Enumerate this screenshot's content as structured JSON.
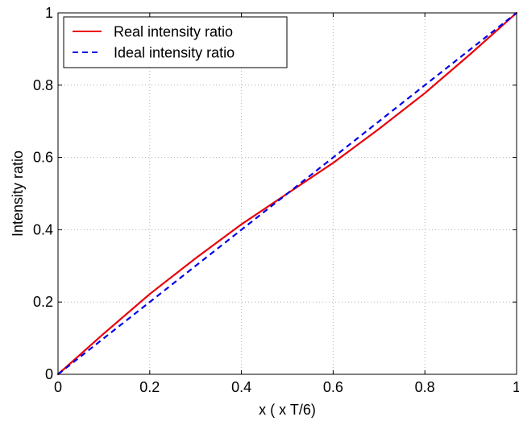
{
  "chart_data": {
    "type": "line",
    "title": "",
    "xlabel": "x ( x T/6)",
    "ylabel": "Intensity ratio",
    "xlim": [
      0,
      1
    ],
    "ylim": [
      0,
      1
    ],
    "x_ticks": [
      "0",
      "0.2",
      "0.4",
      "0.6",
      "0.8",
      "1"
    ],
    "y_ticks": [
      "0",
      "0.2",
      "0.4",
      "0.6",
      "0.8",
      "1"
    ],
    "x_tick_values": [
      0,
      0.2,
      0.4,
      0.6,
      0.8,
      1
    ],
    "y_tick_values": [
      0,
      0.2,
      0.4,
      0.6,
      0.8,
      1
    ],
    "grid": true,
    "legend_position": "top-left",
    "series": [
      {
        "name": "Real intensity ratio",
        "color": "#e8000b",
        "style": "solid",
        "x": [
          0,
          0.1,
          0.2,
          0.3,
          0.4,
          0.5,
          0.6,
          0.7,
          0.8,
          0.9,
          1
        ],
        "y": [
          0,
          0.113,
          0.222,
          0.321,
          0.415,
          0.5,
          0.585,
          0.679,
          0.778,
          0.887,
          1
        ]
      },
      {
        "name": "Ideal intensity ratio",
        "color": "#0000e8",
        "style": "dashed",
        "x": [
          0,
          0.1,
          0.2,
          0.3,
          0.4,
          0.5,
          0.6,
          0.7,
          0.8,
          0.9,
          1
        ],
        "y": [
          0,
          0.1,
          0.2,
          0.3,
          0.4,
          0.5,
          0.6,
          0.7,
          0.8,
          0.9,
          1
        ]
      }
    ]
  }
}
